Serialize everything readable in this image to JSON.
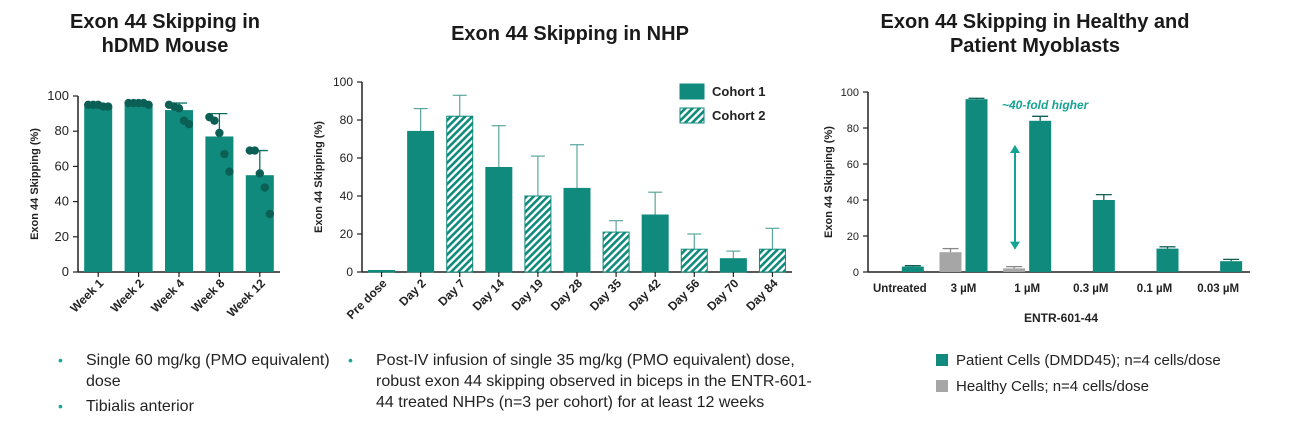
{
  "colors": {
    "teal": "#0f8a7c",
    "teal_light": "#20b2a6",
    "grey": "#a6a6a6",
    "axis": "#222222"
  },
  "chart_data": [
    {
      "type": "bar",
      "title": "Exon 44 Skipping in hDMD Mouse",
      "title_lines": [
        "Exon 44 Skipping in",
        "hDMD Mouse"
      ],
      "ylabel": "Exon 44 Skipping (%)",
      "ylim": [
        0,
        100
      ],
      "yticks": [
        0,
        20,
        40,
        60,
        80,
        100
      ],
      "categories": [
        "Week 1",
        "Week 2",
        "Week 4",
        "Week 8",
        "Week 12"
      ],
      "values": [
        94,
        95,
        92,
        77,
        55
      ],
      "error_upper": [
        1,
        1,
        4,
        13,
        14
      ],
      "points": [
        [
          95,
          95,
          95,
          94,
          94
        ],
        [
          96,
          96,
          96,
          96,
          95
        ],
        [
          95,
          94,
          93,
          86,
          84
        ],
        [
          88,
          86,
          79,
          67,
          57
        ],
        [
          69,
          69,
          56,
          48,
          33
        ]
      ]
    },
    {
      "type": "bar",
      "title": "Exon 44 Skipping in NHP",
      "ylabel": "Exon 44 Skipping (%)",
      "ylim": [
        0,
        100
      ],
      "yticks": [
        0,
        20,
        40,
        60,
        80,
        100
      ],
      "categories": [
        "Pre dose",
        "Day 2",
        "Day 7",
        "Day 14",
        "Day 19",
        "Day 28",
        "Day 35",
        "Day 42",
        "Day 56",
        "Day 70",
        "Day 84"
      ],
      "values": [
        0,
        74,
        82,
        55,
        40,
        44,
        21,
        30,
        12,
        7,
        12
      ],
      "error_upper": [
        0,
        12,
        11,
        22,
        21,
        23,
        6,
        12,
        8,
        4,
        11
      ],
      "cohort": [
        1,
        1,
        2,
        1,
        2,
        1,
        2,
        1,
        2,
        1,
        2
      ],
      "legend": [
        "Cohort 1",
        "Cohort 2"
      ],
      "legend_position": "top-right"
    },
    {
      "type": "bar",
      "title": "Exon 44 Skipping in Healthy and Patient Myoblasts",
      "title_lines": [
        "Exon 44 Skipping in Healthy and",
        "Patient Myoblasts"
      ],
      "ylabel": "Exon 44 Skipping (%)",
      "xlabel": "ENTR-601-44",
      "ylim": [
        0,
        100
      ],
      "yticks": [
        0,
        20,
        40,
        60,
        80,
        100
      ],
      "categories": [
        "Untreated",
        "3 µM",
        "1 µM",
        "0.3 µM",
        "0.1 µM",
        "0.03 µM"
      ],
      "series": [
        {
          "name": "Healthy Cells; n=4 cells/dose",
          "values": [
            0,
            11,
            2,
            0,
            0,
            0
          ],
          "error_upper": [
            0,
            2,
            1,
            0,
            0,
            0
          ]
        },
        {
          "name": "Patient Cells (DMDD45); n=4 cells/dose",
          "values": [
            3,
            96,
            84,
            40,
            13,
            6
          ],
          "error_upper": [
            0.5,
            0.5,
            2.5,
            3,
            1,
            1
          ]
        }
      ],
      "annotation": "~40-fold higher"
    }
  ],
  "bullets_mouse": [
    "Single 60 mg/kg (PMO equivalent) dose",
    "Tibialis anterior"
  ],
  "bullets_nhp": [
    "Post-IV infusion of single 35 mg/kg (PMO equivalent) dose, robust exon 44 skipping observed in biceps in the ENTR-601-44 treated NHPs (n=3 per cohort) for at least 12 weeks"
  ],
  "legend_cells": [
    "Patient Cells (DMDD45); n=4 cells/dose",
    "Healthy Cells; n=4 cells/dose"
  ]
}
